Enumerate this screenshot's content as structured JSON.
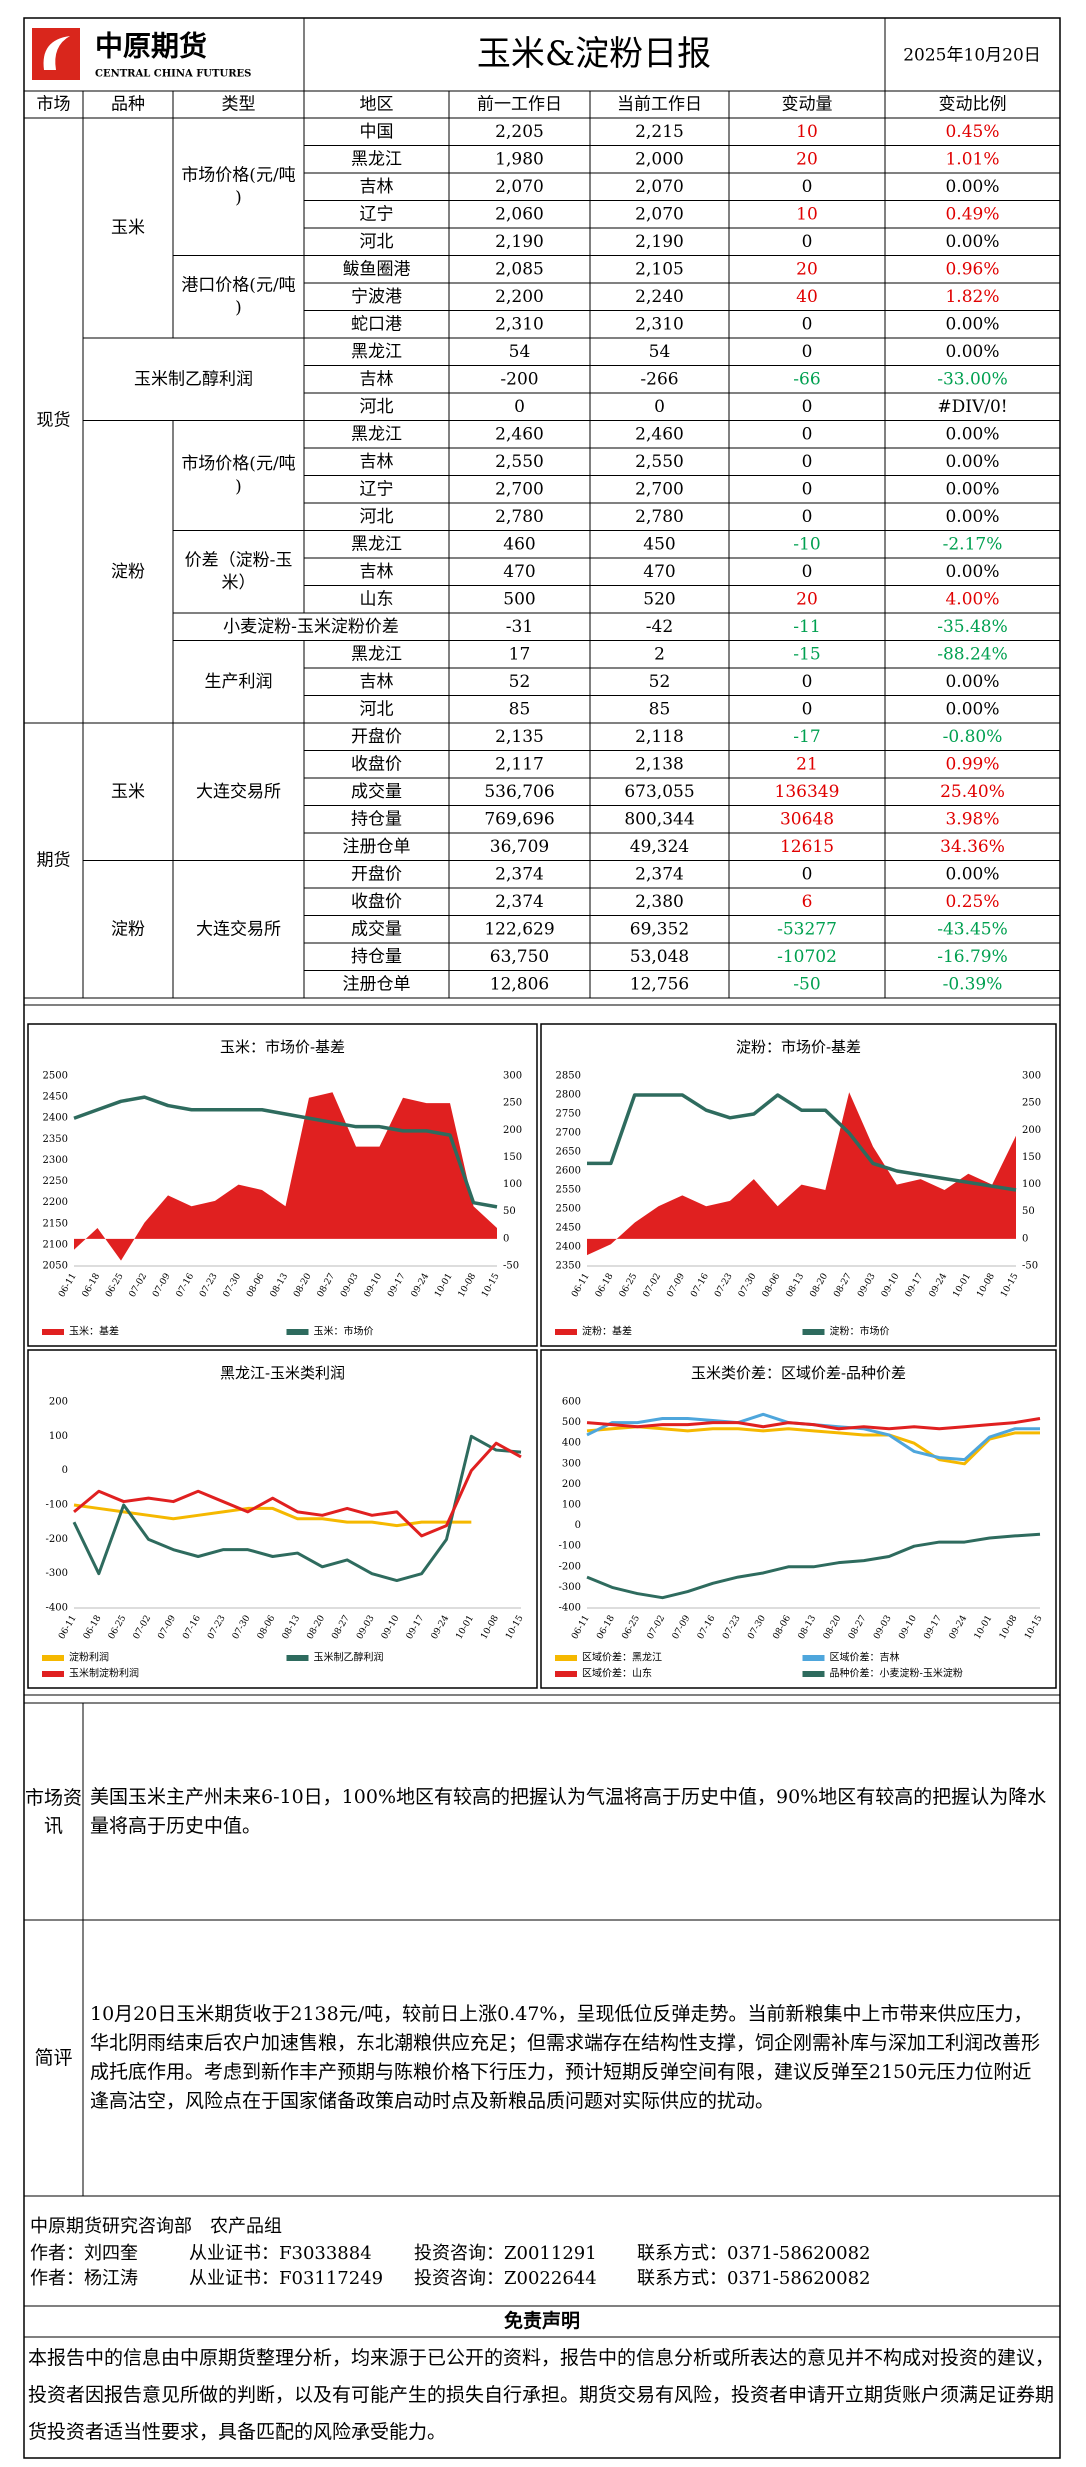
{
  "header": {
    "logo_cn": "中原期货",
    "logo_en": "CENTRAL CHINA FUTURES",
    "title": "玉米&淀粉日报",
    "date": "2025年10月20日"
  },
  "table": {
    "columns": [
      "市场",
      "品种",
      "类型",
      "地区",
      "前一工作日",
      "当前工作日",
      "变动量",
      "变动比例"
    ],
    "sections": [
      {
        "market": "现货",
        "varieties": [
          {
            "name": "玉米",
            "types": [
              {
                "name": "市场价格(元/吨)",
                "rows": [
                  {
                    "region": "中国",
                    "prev": "2,205",
                    "curr": "2,215",
                    "change": "10",
                    "pct": "0.45%"
                  },
                  {
                    "region": "黑龙江",
                    "prev": "1,980",
                    "curr": "2,000",
                    "change": "20",
                    "pct": "1.01%"
                  },
                  {
                    "region": "吉林",
                    "prev": "2,070",
                    "curr": "2,070",
                    "change": "0",
                    "pct": "0.00%"
                  },
                  {
                    "region": "辽宁",
                    "prev": "2,060",
                    "curr": "2,070",
                    "change": "10",
                    "pct": "0.49%"
                  },
                  {
                    "region": "河北",
                    "prev": "2,190",
                    "curr": "2,190",
                    "change": "0",
                    "pct": "0.00%"
                  }
                ]
              },
              {
                "name": "港口价格(元/吨)",
                "rows": [
                  {
                    "region": "鲅鱼圈港",
                    "prev": "2,085",
                    "curr": "2,105",
                    "change": "20",
                    "pct": "0.96%"
                  },
                  {
                    "region": "宁波港",
                    "prev": "2,200",
                    "curr": "2,240",
                    "change": "40",
                    "pct": "1.82%"
                  },
                  {
                    "region": "蛇口港",
                    "prev": "2,310",
                    "curr": "2,310",
                    "change": "0",
                    "pct": "0.00%"
                  }
                ]
              }
            ]
          },
          {
            "name": "玉米制乙醇利润",
            "types": [
              {
                "rows": [
                  {
                    "region": "黑龙江",
                    "prev": "54",
                    "curr": "54",
                    "change": "0",
                    "pct": "0.00%"
                  },
                  {
                    "region": "吉林",
                    "prev": "-200",
                    "curr": "-266",
                    "change": "-66",
                    "pct": "-33.00%"
                  },
                  {
                    "region": "河北",
                    "prev": "0",
                    "curr": "0",
                    "change": "0",
                    "pct": "#DIV/0!"
                  }
                ]
              }
            ]
          },
          {
            "name": "淀粉",
            "types": [
              {
                "name": "市场价格(元/吨)",
                "rows": [
                  {
                    "region": "黑龙江",
                    "prev": "2,460",
                    "curr": "2,460",
                    "change": "0",
                    "pct": "0.00%"
                  },
                  {
                    "region": "吉林",
                    "prev": "2,550",
                    "curr": "2,550",
                    "change": "0",
                    "pct": "0.00%"
                  },
                  {
                    "region": "辽宁",
                    "prev": "2,700",
                    "curr": "2,700",
                    "change": "0",
                    "pct": "0.00%"
                  },
                  {
                    "region": "河北",
                    "prev": "2,780",
                    "curr": "2,780",
                    "change": "0",
                    "pct": "0.00%"
                  }
                ]
              },
              {
                "name": "价差（淀粉-玉米）",
                "rows": [
                  {
                    "region": "黑龙江",
                    "prev": "460",
                    "curr": "450",
                    "change": "-10",
                    "pct": "-2.17%"
                  },
                  {
                    "region": "吉林",
                    "prev": "470",
                    "curr": "470",
                    "change": "0",
                    "pct": "0.00%"
                  },
                  {
                    "region": "山东",
                    "prev": "500",
                    "curr": "520",
                    "change": "20",
                    "pct": "4.00%"
                  }
                ]
              },
              {
                "name": "小麦淀粉-玉米淀粉价差",
                "rows": [
                  {
                    "prev": "-31",
                    "curr": "-42",
                    "change": "-11",
                    "pct": "-35.48%"
                  }
                ]
              },
              {
                "name": "生产利润",
                "rows": [
                  {
                    "region": "黑龙江",
                    "prev": "17",
                    "curr": "2",
                    "change": "-15",
                    "pct": "-88.24%"
                  },
                  {
                    "region": "吉林",
                    "prev": "52",
                    "curr": "52",
                    "change": "0",
                    "pct": "0.00%"
                  },
                  {
                    "region": "河北",
                    "prev": "85",
                    "curr": "85",
                    "change": "0",
                    "pct": "0.00%"
                  }
                ]
              }
            ]
          }
        ]
      },
      {
        "market": "期货",
        "varieties": [
          {
            "name": "玉米",
            "types": [
              {
                "name": "大连交易所",
                "rows": [
                  {
                    "region": "开盘价",
                    "prev": "2,135",
                    "curr": "2,118",
                    "change": "-17",
                    "pct": "-0.80%"
                  },
                  {
                    "region": "收盘价",
                    "prev": "2,117",
                    "curr": "2,138",
                    "change": "21",
                    "pct": "0.99%"
                  },
                  {
                    "region": "成交量",
                    "prev": "536,706",
                    "curr": "673,055",
                    "change": "136349",
                    "pct": "25.40%"
                  },
                  {
                    "region": "持仓量",
                    "prev": "769,696",
                    "curr": "800,344",
                    "change": "30648",
                    "pct": "3.98%"
                  },
                  {
                    "region": "注册仓单",
                    "prev": "36,709",
                    "curr": "49,324",
                    "change": "12615",
                    "pct": "34.36%"
                  }
                ]
              }
            ]
          },
          {
            "name": "淀粉",
            "types": [
              {
                "name": "大连交易所",
                "rows": [
                  {
                    "region": "开盘价",
                    "prev": "2,374",
                    "curr": "2,374",
                    "change": "0",
                    "pct": "0.00%"
                  },
                  {
                    "region": "收盘价",
                    "prev": "2,374",
                    "curr": "2,380",
                    "change": "6",
                    "pct": "0.25%"
                  },
                  {
                    "region": "成交量",
                    "prev": "122,629",
                    "curr": "69,352",
                    "change": "-53277",
                    "pct": "-43.45%"
                  },
                  {
                    "region": "持仓量",
                    "prev": "63,750",
                    "curr": "53,048",
                    "change": "-10702",
                    "pct": "-16.79%"
                  },
                  {
                    "region": "注册仓单",
                    "prev": "12,806",
                    "curr": "12,756",
                    "change": "-50",
                    "pct": "-0.39%"
                  }
                ]
              }
            ]
          }
        ]
      }
    ]
  },
  "chart_data": [
    {
      "type": "line",
      "title": "玉米：市场价-基差",
      "categories": [
        "06-11",
        "06-18",
        "06-25",
        "07-02",
        "07-09",
        "07-16",
        "07-23",
        "07-30",
        "08-06",
        "08-13",
        "08-20",
        "08-27",
        "09-03",
        "09-10",
        "09-17",
        "09-24",
        "10-01",
        "10-08",
        "10-15"
      ],
      "series": [
        {
          "name": "玉米：基差",
          "color": "#e02020",
          "style": "area",
          "axis": "y2",
          "values": [
            -20,
            20,
            -40,
            30,
            80,
            60,
            70,
            100,
            90,
            60,
            260,
            270,
            170,
            170,
            260,
            250,
            250,
            60,
            20
          ]
        },
        {
          "name": "玉米：市场价",
          "color": "#2e6b5e",
          "values": [
            2400,
            2420,
            2440,
            2450,
            2430,
            2420,
            2420,
            2420,
            2420,
            2410,
            2400,
            2390,
            2380,
            2380,
            2370,
            2370,
            2360,
            2200,
            2190
          ]
        }
      ],
      "ylim": [
        2050,
        2500
      ],
      "yticks": [
        2050,
        2100,
        2150,
        2200,
        2250,
        2300,
        2350,
        2400,
        2450,
        2500
      ],
      "y2lim": [
        -50,
        300
      ],
      "y2ticks": [
        -50,
        0,
        50,
        100,
        150,
        200,
        250,
        300
      ],
      "grid": false,
      "legend": "bottom"
    },
    {
      "type": "line",
      "title": "淀粉：市场价-基差",
      "categories": [
        "06-11",
        "06-18",
        "06-25",
        "07-02",
        "07-09",
        "07-16",
        "07-23",
        "07-30",
        "08-06",
        "08-13",
        "08-20",
        "08-27",
        "09-03",
        "09-10",
        "09-17",
        "09-24",
        "10-01",
        "10-08",
        "10-15"
      ],
      "series": [
        {
          "name": "淀粉：基差",
          "color": "#e02020",
          "style": "area",
          "axis": "y2",
          "values": [
            -30,
            -10,
            30,
            60,
            80,
            60,
            70,
            110,
            60,
            100,
            90,
            270,
            170,
            100,
            110,
            90,
            120,
            100,
            190
          ]
        },
        {
          "name": "淀粉：市场价",
          "color": "#2e6b5e",
          "values": [
            2620,
            2620,
            2800,
            2800,
            2800,
            2760,
            2740,
            2750,
            2800,
            2760,
            2760,
            2700,
            2620,
            2600,
            2590,
            2580,
            2570,
            2560,
            2550
          ]
        }
      ],
      "ylim": [
        2350,
        2850
      ],
      "yticks": [
        2350,
        2400,
        2450,
        2500,
        2550,
        2600,
        2650,
        2700,
        2750,
        2800,
        2850
      ],
      "y2lim": [
        -50,
        300
      ],
      "y2ticks": [
        -50,
        0,
        50,
        100,
        150,
        200,
        250,
        300
      ],
      "grid": false,
      "legend": "bottom"
    },
    {
      "type": "line",
      "title": "黑龙江-玉米类利润",
      "categories": [
        "06-11",
        "06-18",
        "06-25",
        "07-02",
        "07-09",
        "07-16",
        "07-23",
        "07-30",
        "08-06",
        "08-13",
        "08-20",
        "08-27",
        "09-03",
        "09-10",
        "09-17",
        "09-24",
        "10-01",
        "10-08",
        "10-15"
      ],
      "series": [
        {
          "name": "淀粉利润",
          "color": "#f5b800",
          "values": [
            -100,
            -110,
            -120,
            -130,
            -140,
            -130,
            -120,
            -110,
            -110,
            -140,
            -140,
            -150,
            -150,
            -160,
            -150,
            -150,
            -150,
            null,
            null
          ]
        },
        {
          "name": "玉米制乙醇利润",
          "color": "#2e6b5e",
          "values": [
            -150,
            -300,
            -100,
            -200,
            -230,
            -250,
            -230,
            -230,
            -250,
            -240,
            -280,
            -260,
            -300,
            -320,
            -300,
            -200,
            100,
            60,
            54
          ]
        },
        {
          "name": "玉米制淀粉利润",
          "color": "#e02020",
          "values": [
            -120,
            -60,
            -90,
            -80,
            -90,
            -60,
            -90,
            -120,
            -80,
            -120,
            -130,
            -110,
            -130,
            -120,
            -190,
            -160,
            0,
            80,
            40
          ]
        }
      ],
      "ylim": [
        -400,
        200
      ],
      "yticks": [
        -400,
        -300,
        -200,
        -100,
        0,
        100,
        200
      ],
      "grid": false,
      "legend": "bottom"
    },
    {
      "type": "line",
      "title": "玉米类价差：区域价差-品种价差",
      "categories": [
        "06-11",
        "06-18",
        "06-25",
        "07-02",
        "07-09",
        "07-16",
        "07-23",
        "07-30",
        "08-06",
        "08-13",
        "08-20",
        "08-27",
        "09-03",
        "09-10",
        "09-17",
        "09-24",
        "10-01",
        "10-08",
        "10-15"
      ],
      "series": [
        {
          "name": "区域价差：黑龙江",
          "color": "#f5b800",
          "values": [
            460,
            470,
            480,
            470,
            460,
            470,
            470,
            460,
            470,
            460,
            450,
            440,
            440,
            400,
            320,
            300,
            420,
            450,
            450
          ]
        },
        {
          "name": "区域价差：吉林",
          "color": "#4ea6dc",
          "values": [
            440,
            500,
            500,
            520,
            520,
            510,
            500,
            540,
            500,
            490,
            480,
            470,
            440,
            360,
            330,
            320,
            430,
            470,
            470
          ]
        },
        {
          "name": "区域价差：山东",
          "color": "#e02020",
          "values": [
            500,
            490,
            480,
            490,
            490,
            500,
            500,
            480,
            500,
            490,
            470,
            480,
            470,
            480,
            470,
            480,
            490,
            500,
            520
          ]
        },
        {
          "name": "品种价差：小麦淀粉-玉米淀粉",
          "color": "#2e6b5e",
          "values": [
            -250,
            -300,
            -330,
            -350,
            -320,
            -280,
            -250,
            -230,
            -200,
            -200,
            -180,
            -170,
            -150,
            -100,
            -80,
            -80,
            -60,
            -50,
            -42
          ]
        }
      ],
      "ylim": [
        -400,
        600
      ],
      "yticks": [
        -400,
        -300,
        -200,
        -100,
        0,
        100,
        200,
        300,
        400,
        500,
        600
      ],
      "grid": false,
      "legend": "bottom"
    }
  ],
  "market_info": {
    "label": "市场资讯",
    "text": "美国玉米主产州未来6-10日，100%地区有较高的把握认为气温将高于历史中值，90%地区有较高的把握认为降水量将高于历史中值。"
  },
  "review": {
    "label": "简评",
    "text": "10月20日玉米期货收于2138元/吨，较前日上涨0.47%，呈现低位反弹走势。当前新粮集中上市带来供应压力，华北阴雨结束后农户加速售粮，东北潮粮供应充足；但需求端存在结构性支撑，饲企刚需补库与深加工利润改善形成托底作用。考虑到新作丰产预期与陈粮价格下行压力，预计短期反弹空间有限，建议反弹至2150元压力位附近逢高沽空，风险点在于国家储备政策启动时点及新粮品质问题对实际供应的扰动。"
  },
  "authors": {
    "department": "中原期货研究咨询部　农产品组",
    "rows": [
      [
        "作者：刘四奎",
        "从业证书：F3033884",
        "投资咨询：Z0011291",
        "联系方式：0371-58620082"
      ],
      [
        "作者：杨江涛",
        "从业证书：F03117249",
        "投资咨询：Z0022644",
        "联系方式：0371-58620082"
      ]
    ]
  },
  "disclaimer": {
    "title": "免责声明",
    "text": "本报告中的信息由中原期货整理分析，均来源于已公开的资料，报告中的信息分析或所表达的意见并不构成对投资的建议，投资者因报告意见所做的判断，以及有可能产生的损失自行承担。期货交易有风险，投资者申请开立期货账户须满足证券期货投资者适当性要求，具备匹配的风险承受能力。"
  }
}
